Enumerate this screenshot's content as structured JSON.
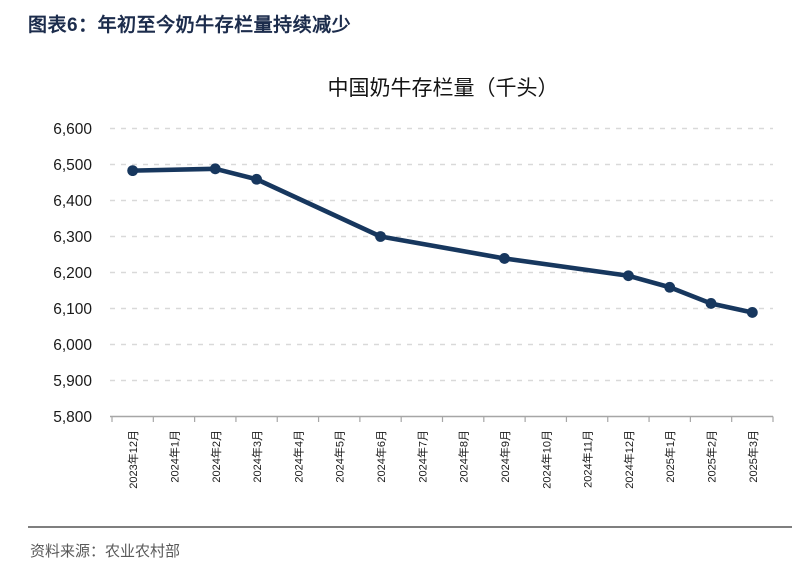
{
  "header": {
    "title": "图表6：年初至今奶牛存栏量持续减少"
  },
  "footer": {
    "source": "资料来源：农业农村部"
  },
  "colors": {
    "line": "#17375e",
    "marker": "#17375e",
    "grid": "#d9d9d9",
    "axis": "#a6a6a6",
    "tick_label": "#1a1a1a",
    "header_text": "#1c2c4c",
    "source_text": "#595959"
  },
  "chart_data": {
    "type": "line",
    "title": "中国奶牛存栏量（千头）",
    "xlabel": "",
    "ylabel": "",
    "ylim": [
      5800,
      6600
    ],
    "y_tick_step": 100,
    "grid": true,
    "grid_style": "dashed",
    "legend": "none",
    "categories": [
      "2023年12月",
      "2024年1月",
      "2024年2月",
      "2024年3月",
      "2024年4月",
      "2024年5月",
      "2024年6月",
      "2024年7月",
      "2024年8月",
      "2024年9月",
      "2024年10月",
      "2024年11月",
      "2024年12月",
      "2025年1月",
      "2025年2月",
      "2025年3月"
    ],
    "y_ticks": [
      {
        "value": 5800,
        "label": "5,800"
      },
      {
        "value": 5900,
        "label": "5,900"
      },
      {
        "value": 6000,
        "label": "6,000"
      },
      {
        "value": 6100,
        "label": "6,100"
      },
      {
        "value": 6200,
        "label": "6,200"
      },
      {
        "value": 6300,
        "label": "6,300"
      },
      {
        "value": 6400,
        "label": "6,400"
      },
      {
        "value": 6500,
        "label": "6,500"
      },
      {
        "value": 6600,
        "label": "6,600"
      }
    ],
    "series": [
      {
        "name": "中国奶牛存栏量",
        "points": [
          {
            "category": "2023年12月",
            "value": 6483
          },
          {
            "category": "2024年2月",
            "value": 6488
          },
          {
            "category": "2024年3月",
            "value": 6459
          },
          {
            "category": "2024年6月",
            "value": 6300
          },
          {
            "category": "2024年9月",
            "value": 6239
          },
          {
            "category": "2024年12月",
            "value": 6191
          },
          {
            "category": "2025年1月",
            "value": 6159
          },
          {
            "category": "2025年2月",
            "value": 6114
          },
          {
            "category": "2025年3月",
            "value": 6089
          }
        ]
      }
    ]
  }
}
